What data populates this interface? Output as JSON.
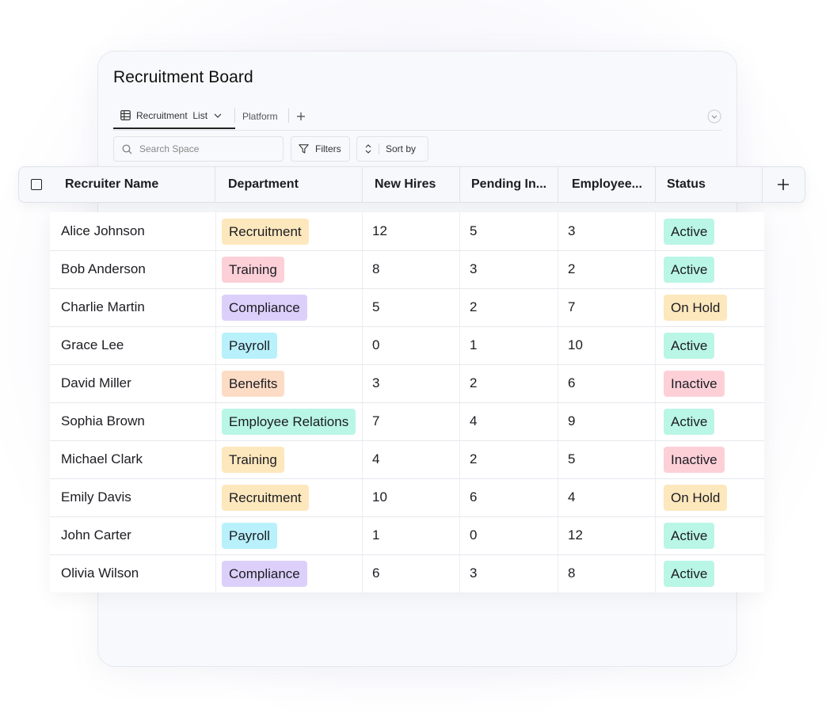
{
  "board": {
    "title": "Recruitment Board",
    "tabs": [
      {
        "label": "Recruitment  List",
        "icon": "table-icon",
        "active": true
      },
      {
        "label": "Platform",
        "active": false
      }
    ],
    "add_tab_icon": "plus-icon",
    "collapse_icon": "chevron-down-circle-icon"
  },
  "toolbar": {
    "search_placeholder": "Search Space",
    "filters_label": "Filters",
    "sort_label": "Sort by"
  },
  "table": {
    "columns": [
      "Recruiter Name",
      "Department",
      "New Hires",
      "Pending In...",
      "Employee...",
      "Status"
    ],
    "rows": [
      {
        "name": "Alice Johnson",
        "department": "Recruitment",
        "new_hires": "12",
        "pending": "5",
        "employees": "3",
        "status": "Active"
      },
      {
        "name": "Bob Anderson",
        "department": "Training",
        "new_hires": "8",
        "pending": "3",
        "employees": "2",
        "status": "Active"
      },
      {
        "name": "Charlie Martin",
        "department": "Compliance",
        "new_hires": "5",
        "pending": "2",
        "employees": "7",
        "status": "On Hold"
      },
      {
        "name": "Grace Lee",
        "department": "Payroll",
        "new_hires": "0",
        "pending": "1",
        "employees": "10",
        "status": "Active"
      },
      {
        "name": "David Miller",
        "department": "Benefits",
        "new_hires": "3",
        "pending": "2",
        "employees": "6",
        "status": "Inactive"
      },
      {
        "name": "Sophia Brown",
        "department": "Employee Relations",
        "new_hires": "7",
        "pending": "4",
        "employees": "9",
        "status": "Active"
      },
      {
        "name": "Michael Clark",
        "department": "Training",
        "new_hires": "4",
        "pending": "2",
        "employees": "5",
        "status": "Inactive"
      },
      {
        "name": "Emily Davis",
        "department": "Recruitment",
        "new_hires": "10",
        "pending": "6",
        "employees": "4",
        "status": "On Hold"
      },
      {
        "name": "John Carter",
        "department": "Payroll",
        "new_hires": "1",
        "pending": "0",
        "employees": "12",
        "status": "Active"
      },
      {
        "name": "Olivia Wilson",
        "department": "Compliance",
        "new_hires": "6",
        "pending": "3",
        "employees": "8",
        "status": "Active"
      }
    ]
  },
  "colors": {
    "dept": {
      "Recruitment": "#fde8bd",
      "Training": "#fdd0d8",
      "Compliance": "#dcd0fb",
      "Payroll": "#b8f1fb",
      "Benefits": "#fddcc6",
      "Employee Relations": "#b9f6e5"
    },
    "dept_alt_training": "#fde8bd",
    "status": {
      "Active": "#b9f6e5",
      "On Hold": "#fde8bd",
      "Inactive": "#fdd0d8"
    }
  }
}
